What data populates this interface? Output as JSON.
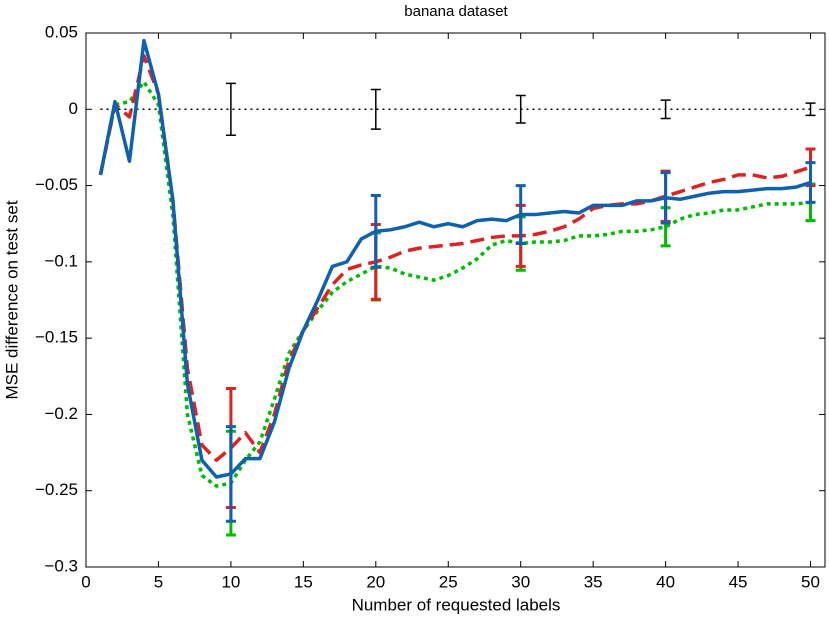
{
  "chart_data": {
    "type": "line",
    "title": "banana dataset",
    "x_label": "Number of requested labels",
    "y_label": "MSE difference on test set",
    "x": [
      1,
      2,
      3,
      4,
      5,
      6,
      7,
      8,
      9,
      10,
      11,
      12,
      13,
      14,
      15,
      16,
      17,
      18,
      19,
      20,
      21,
      22,
      23,
      24,
      25,
      26,
      27,
      28,
      29,
      30,
      31,
      32,
      33,
      34,
      35,
      36,
      37,
      38,
      39,
      40,
      41,
      42,
      43,
      44,
      45,
      46,
      47,
      48,
      49,
      50
    ],
    "xlim": [
      0,
      51
    ],
    "xticks": [
      0,
      5,
      10,
      15,
      20,
      25,
      30,
      35,
      40,
      45,
      50
    ],
    "ylim": [
      -0.3,
      0.05
    ],
    "yticks": [
      {
        "value": -0.3,
        "label": "−0.3"
      },
      {
        "value": -0.25,
        "label": "−0.25"
      },
      {
        "value": -0.2,
        "label": "−0.2"
      },
      {
        "value": -0.15,
        "label": "−0.15"
      },
      {
        "value": -0.1,
        "label": "−0.1"
      },
      {
        "value": -0.05,
        "label": "−0.05"
      },
      0,
      0.05
    ],
    "error_x": [
      10,
      20,
      30,
      40,
      50
    ],
    "series": [
      {
        "color": "#000000",
        "style": "dotted",
        "values": [
          0,
          0,
          0,
          0,
          0,
          0,
          0,
          0,
          0,
          0,
          0,
          0,
          0,
          0,
          0,
          0,
          0,
          0,
          0,
          0,
          0,
          0,
          0,
          0,
          0,
          0,
          0,
          0,
          0,
          0,
          0,
          0,
          0,
          0,
          0,
          0,
          0,
          0,
          0,
          0,
          0,
          0,
          0,
          0,
          0,
          0,
          0,
          0,
          0,
          0
        ],
        "errors": [
          0.017,
          0.013,
          0.009,
          0.006,
          0.004
        ]
      },
      {
        "color": "#00bb00",
        "style": "dotted-thick",
        "values": [
          -0.043,
          0.003,
          0.005,
          0.018,
          0.003,
          -0.07,
          -0.2,
          -0.24,
          -0.247,
          -0.245,
          -0.23,
          -0.218,
          -0.19,
          -0.16,
          -0.145,
          -0.132,
          -0.12,
          -0.113,
          -0.108,
          -0.103,
          -0.104,
          -0.108,
          -0.11,
          -0.112,
          -0.109,
          -0.104,
          -0.098,
          -0.089,
          -0.086,
          -0.088,
          -0.087,
          -0.087,
          -0.086,
          -0.083,
          -0.083,
          -0.082,
          -0.08,
          -0.08,
          -0.079,
          -0.077,
          -0.072,
          -0.069,
          -0.068,
          -0.066,
          -0.066,
          -0.064,
          -0.062,
          -0.062,
          -0.062,
          -0.061
        ],
        "errors": [
          0.034,
          0.022,
          0.0175,
          0.0125,
          0.012
        ]
      },
      {
        "color": "#dd2222",
        "style": "dashed",
        "values": [
          -0.043,
          0.003,
          -0.005,
          0.035,
          0.01,
          -0.06,
          -0.17,
          -0.22,
          -0.23,
          -0.222,
          -0.212,
          -0.225,
          -0.2,
          -0.165,
          -0.145,
          -0.13,
          -0.115,
          -0.105,
          -0.102,
          -0.1,
          -0.097,
          -0.093,
          -0.091,
          -0.09,
          -0.089,
          -0.088,
          -0.086,
          -0.084,
          -0.083,
          -0.083,
          -0.082,
          -0.08,
          -0.077,
          -0.072,
          -0.065,
          -0.063,
          -0.062,
          -0.062,
          -0.06,
          -0.057,
          -0.054,
          -0.051,
          -0.048,
          -0.046,
          -0.043,
          -0.043,
          -0.045,
          -0.044,
          -0.041,
          -0.038
        ],
        "errors": [
          0.039,
          0.0245,
          0.02,
          0.0165,
          0.012
        ]
      },
      {
        "color": "#1060b0",
        "style": "solid",
        "values": [
          -0.043,
          0.005,
          -0.034,
          0.045,
          0.01,
          -0.06,
          -0.18,
          -0.23,
          -0.241,
          -0.239,
          -0.229,
          -0.229,
          -0.205,
          -0.17,
          -0.145,
          -0.125,
          -0.103,
          -0.1,
          -0.085,
          -0.08,
          -0.079,
          -0.077,
          -0.074,
          -0.077,
          -0.075,
          -0.077,
          -0.073,
          -0.072,
          -0.073,
          -0.069,
          -0.069,
          -0.068,
          -0.067,
          -0.068,
          -0.063,
          -0.063,
          -0.063,
          -0.06,
          -0.06,
          -0.058,
          -0.059,
          -0.057,
          -0.055,
          -0.054,
          -0.054,
          -0.053,
          -0.052,
          -0.052,
          -0.051,
          -0.048
        ],
        "errors": [
          0.031,
          0.0235,
          0.019,
          0.0165,
          0.013
        ]
      }
    ]
  }
}
